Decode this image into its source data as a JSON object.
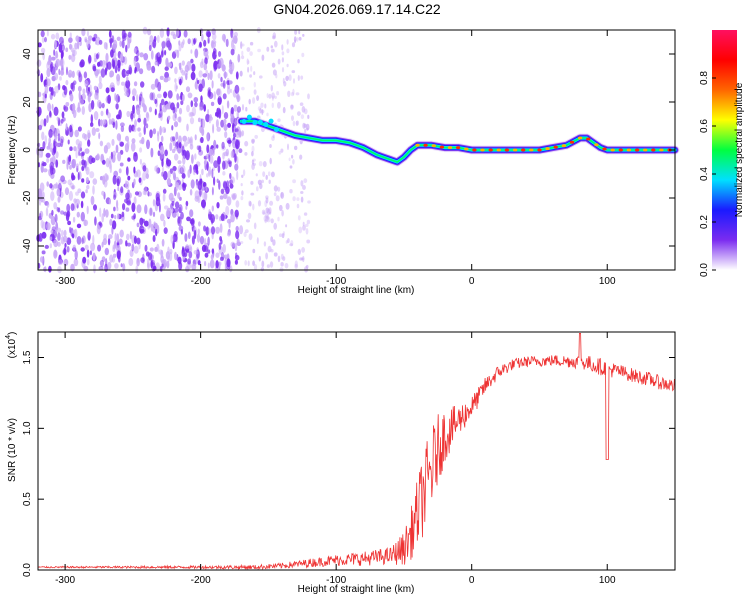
{
  "title": "GN04.2026.069.17.14.C22",
  "colors": {
    "snr_line": "#ee3333",
    "noise_purple": "#7b2cf0",
    "noise_light": "#c9a8f7",
    "axis": "#000000"
  },
  "chart_data": [
    {
      "type": "heatmap",
      "name": "spectrogram",
      "xlabel": "Height of straight line (km)",
      "ylabel": "Frequency (Hz)",
      "xlim": [
        -320,
        150
      ],
      "ylim": [
        -50,
        50
      ],
      "x_ticks": [
        -300,
        -200,
        -100,
        0,
        100
      ],
      "x_tick_labels": [
        "-300",
        "-200",
        "-100",
        "0",
        "100"
      ],
      "y_ticks": [
        -40,
        -20,
        0,
        20,
        40
      ],
      "y_tick_labels": [
        "-40",
        "-20",
        "0",
        "20",
        "40"
      ],
      "noise_region_x": [
        -320,
        -170
      ],
      "sparse_region_x": [
        -170,
        -120
      ],
      "trace": {
        "x": [
          -170,
          -160,
          -150,
          -140,
          -130,
          -120,
          -110,
          -100,
          -90,
          -80,
          -70,
          -60,
          -55,
          -50,
          -45,
          -40,
          -30,
          -20,
          -10,
          0,
          20,
          40,
          50,
          60,
          70,
          80,
          85,
          90,
          95,
          100,
          110,
          120,
          130,
          140,
          150
        ],
        "y": [
          12,
          12,
          10,
          8,
          6,
          5,
          4,
          4,
          3,
          1,
          -2,
          -4,
          -5,
          -3,
          0,
          2,
          2,
          1,
          1,
          0,
          0,
          0,
          0,
          1,
          2,
          5,
          5,
          3,
          1,
          0,
          0,
          0,
          0,
          0,
          0
        ]
      },
      "colorbar": {
        "label": "Normalized spectral amplitude",
        "range": [
          0,
          1
        ],
        "ticks": [
          0.0,
          0.2,
          0.4,
          0.6,
          0.8
        ],
        "tick_labels": [
          "0.0",
          "0.2",
          "0.4",
          "0.6",
          "0.8"
        ],
        "colormap": [
          "#ffffff",
          "#7b2cf0",
          "#1a1aff",
          "#00e0ff",
          "#00ff40",
          "#ffff00",
          "#ff6600",
          "#ff0000",
          "#ff1060"
        ]
      }
    },
    {
      "type": "line",
      "name": "snr",
      "xlabel": "Height of straight line (km)",
      "ylabel": "SNR (10 * v/v)",
      "y_scale_note": "(x10",
      "y_scale_exp": "4",
      "y_scale_close": ")",
      "xlim": [
        -320,
        150
      ],
      "ylim": [
        0,
        1.68
      ],
      "x_ticks": [
        -300,
        -200,
        -100,
        0,
        100
      ],
      "x_tick_labels": [
        "-300",
        "-200",
        "-100",
        "0",
        "100"
      ],
      "y_ticks": [
        0.0,
        0.5,
        1.0,
        1.5
      ],
      "y_tick_labels": [
        "0.0",
        "0.5",
        "1.0",
        "1.5"
      ],
      "series": [
        {
          "name": "SNR",
          "x": [
            -320,
            -200,
            -160,
            -140,
            -120,
            -100,
            -80,
            -60,
            -50,
            -45,
            -40,
            -35,
            -30,
            -25,
            -20,
            -15,
            -10,
            -5,
            0,
            5,
            10,
            20,
            30,
            40,
            60,
            80,
            90,
            100,
            110,
            120,
            130,
            140,
            150
          ],
          "y": [
            0.02,
            0.02,
            0.02,
            0.03,
            0.05,
            0.07,
            0.08,
            0.1,
            0.15,
            0.25,
            0.4,
            0.55,
            0.7,
            0.85,
            0.95,
            1.0,
            1.05,
            1.1,
            1.15,
            1.22,
            1.3,
            1.4,
            1.45,
            1.47,
            1.48,
            1.47,
            1.45,
            1.42,
            1.4,
            1.37,
            1.35,
            1.32,
            1.3
          ],
          "noise_amplitude": [
            0.005,
            0.01,
            0.015,
            0.02,
            0.03,
            0.04,
            0.05,
            0.06,
            0.12,
            0.18,
            0.25,
            0.3,
            0.3,
            0.25,
            0.2,
            0.15,
            0.12,
            0.1,
            0.08,
            0.07,
            0.06,
            0.05,
            0.04,
            0.04,
            0.04,
            0.05,
            0.06,
            0.06,
            0.05,
            0.05,
            0.05,
            0.05,
            0.05
          ]
        }
      ]
    }
  ]
}
